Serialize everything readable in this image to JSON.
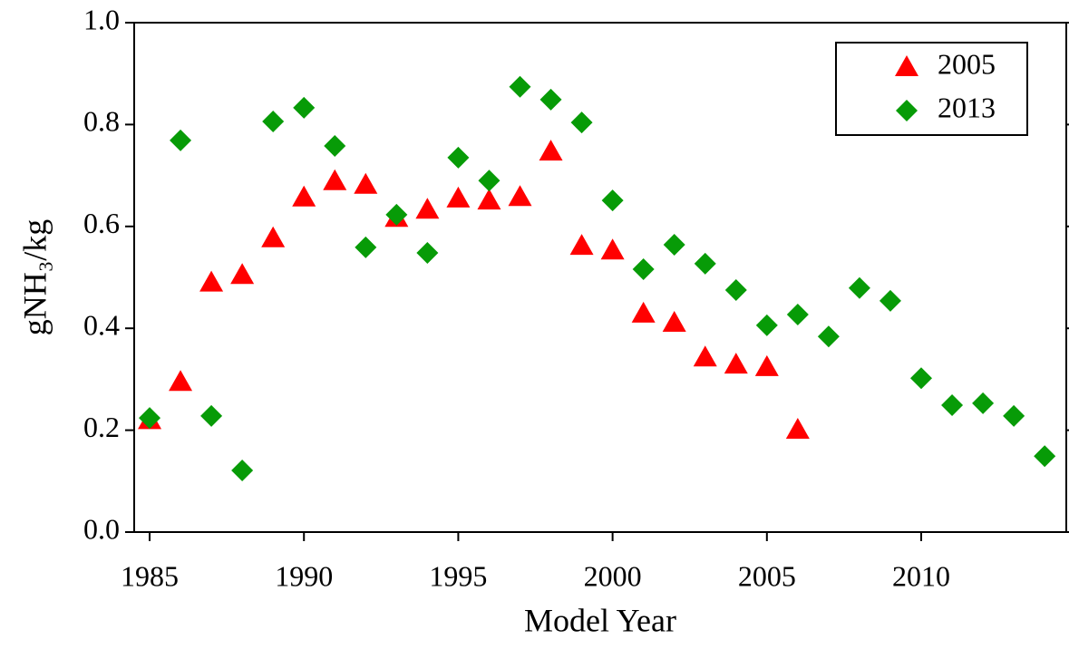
{
  "chart_data": {
    "type": "scatter",
    "x_label": "Model Year",
    "y_label": "gNH₃/kg",
    "xlim": [
      1984.5,
      2014.7
    ],
    "xticks": [
      1985,
      1990,
      1995,
      2000,
      2005,
      2010
    ],
    "ylim": [
      0,
      1
    ],
    "yticks": [
      {
        "value": 0,
        "label": "0.0"
      },
      0.2,
      0.4,
      0.6,
      0.8,
      {
        "value": 1,
        "label": "1.0"
      }
    ],
    "grid": false,
    "legend": "upper right",
    "series": [
      {
        "name": "2005",
        "color": "#ff0000",
        "marker": "triangle",
        "x": [
          1985,
          1986,
          1987,
          1988,
          1989,
          1990,
          1991,
          1992,
          1993,
          1994,
          1995,
          1996,
          1997,
          1998,
          1999,
          2000,
          2001,
          2002,
          2003,
          2004,
          2005,
          2006
        ],
        "values": [
          0.22,
          0.295,
          0.49,
          0.505,
          0.577,
          0.657,
          0.689,
          0.682,
          0.617,
          0.633,
          0.655,
          0.651,
          0.658,
          0.747,
          0.562,
          0.553,
          0.429,
          0.411,
          0.343,
          0.329,
          0.324,
          0.201
        ]
      },
      {
        "name": "2013",
        "color": "#079b07",
        "marker": "diamond",
        "x": [
          1985,
          1986,
          1987,
          1988,
          1989,
          1990,
          1991,
          1992,
          1993,
          1994,
          1995,
          1996,
          1997,
          1998,
          1999,
          2000,
          2001,
          2002,
          2003,
          2004,
          2005,
          2006,
          2007,
          2008,
          2009,
          2010,
          2011,
          2012,
          2013,
          2014
        ],
        "values": [
          0.224,
          0.769,
          0.228,
          0.121,
          0.806,
          0.833,
          0.758,
          0.559,
          0.623,
          0.548,
          0.735,
          0.69,
          0.874,
          0.849,
          0.804,
          0.651,
          0.516,
          0.564,
          0.527,
          0.475,
          0.406,
          0.427,
          0.384,
          0.479,
          0.454,
          0.302,
          0.249,
          0.253,
          0.228,
          0.149
        ]
      }
    ]
  }
}
